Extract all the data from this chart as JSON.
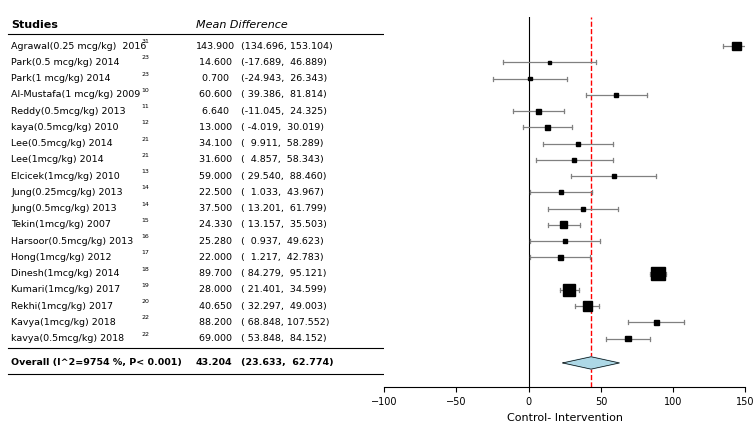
{
  "studies": [
    "Agrawal(0.25 mcg/kg)  2016",
    "Park(0.5 mcg/kg) 2014",
    "Park(1 mcg/kg) 2014 ",
    "Al-Mustafa(1 mcg/kg) 2009",
    "Reddy(0.5mcg/kg) 2013",
    "kaya(0.5mcg/kg) 2010",
    "Lee(0.5mcg/kg) 2014",
    "Lee(1mcg/kg) 2014",
    "Elcicek(1mcg/kg) 2010",
    "Jung(0.25mcg/kg) 2013 ",
    "Jung(0.5mcg/kg) 2013",
    "Tekin(1mcg/kg) 2007 ",
    "Harsoor(0.5mcg/kg) 2013",
    "Hong(1mcg/kg) 2012",
    "Dinesh(1mcg/kg) 2014",
    "Kumari(1mcg/kg) 2017",
    "Rekhi(1mcg/kg) 2017",
    "Kavya(1mcg/kg) 2018 ",
    "kavya(0.5mcg/kg) 2018"
  ],
  "superscripts": [
    "31",
    "23",
    "23",
    "10",
    "11",
    "12",
    "21",
    "21",
    "13",
    "14",
    "14",
    "15",
    "16",
    "17",
    "18",
    "19",
    "20",
    "22",
    "22"
  ],
  "means": [
    143.9,
    14.6,
    0.7,
    60.6,
    6.64,
    13.0,
    34.1,
    31.6,
    59.0,
    22.5,
    37.5,
    24.33,
    25.28,
    22.0,
    89.7,
    28.0,
    40.65,
    88.2,
    69.0
  ],
  "lower": [
    134.696,
    -17.689,
    -24.943,
    39.386,
    -11.045,
    -4.019,
    9.911,
    4.857,
    29.54,
    1.033,
    13.201,
    13.157,
    0.937,
    1.217,
    84.279,
    21.401,
    32.297,
    68.848,
    53.848
  ],
  "upper": [
    153.104,
    46.889,
    26.343,
    81.814,
    24.325,
    30.019,
    58.289,
    58.343,
    88.46,
    43.967,
    61.799,
    35.503,
    49.623,
    42.783,
    95.121,
    34.599,
    49.003,
    107.552,
    84.152
  ],
  "mean_display": [
    "143.900",
    " 14.600",
    "  0.700",
    " 60.600",
    "  6.640",
    " 13.000",
    " 34.100",
    " 31.600",
    " 59.000",
    " 22.500",
    " 37.500",
    " 24.330",
    " 25.280",
    " 22.000",
    " 89.700",
    " 28.000",
    " 40.650",
    " 88.200",
    " 69.000"
  ],
  "ci_display": [
    "(134.696, 153.104)",
    "(-17.689,  46.889)",
    "(-24.943,  26.343)",
    "( 39.386,  81.814)",
    "(-11.045,  24.325)",
    "( -4.019,  30.019)",
    "(  9.911,  58.289)",
    "(  4.857,  58.343)",
    "( 29.540,  88.460)",
    "(  1.033,  43.967)",
    "( 13.201,  61.799)",
    "( 13.157,  35.503)",
    "(  0.937,  49.623)",
    "(  1.217,  42.783)",
    "( 84.279,  95.121)",
    "( 21.401,  34.599)",
    "( 32.297,  49.003)",
    "( 68.848, 107.552)",
    "( 53.848,  84.152)"
  ],
  "overall_mean": 43.204,
  "overall_lower": 23.633,
  "overall_upper": 62.774,
  "overall_label": "Overall (I^2=9754 %, P< 0.001)",
  "overall_display": "43.204",
  "overall_ci": "(23.633,  62.774)",
  "xlim": [
    -100,
    150
  ],
  "xticks": [
    -100,
    -50,
    0,
    50,
    100,
    150
  ],
  "xlabel": "Control- Intervention",
  "dashed_line": 43.204,
  "box_color": "#000000",
  "diamond_color": "#ADD8E6",
  "line_color": "#808080",
  "dashed_color": "#FF0000",
  "header_studies": "Studies",
  "header_md": "Mean Difference"
}
